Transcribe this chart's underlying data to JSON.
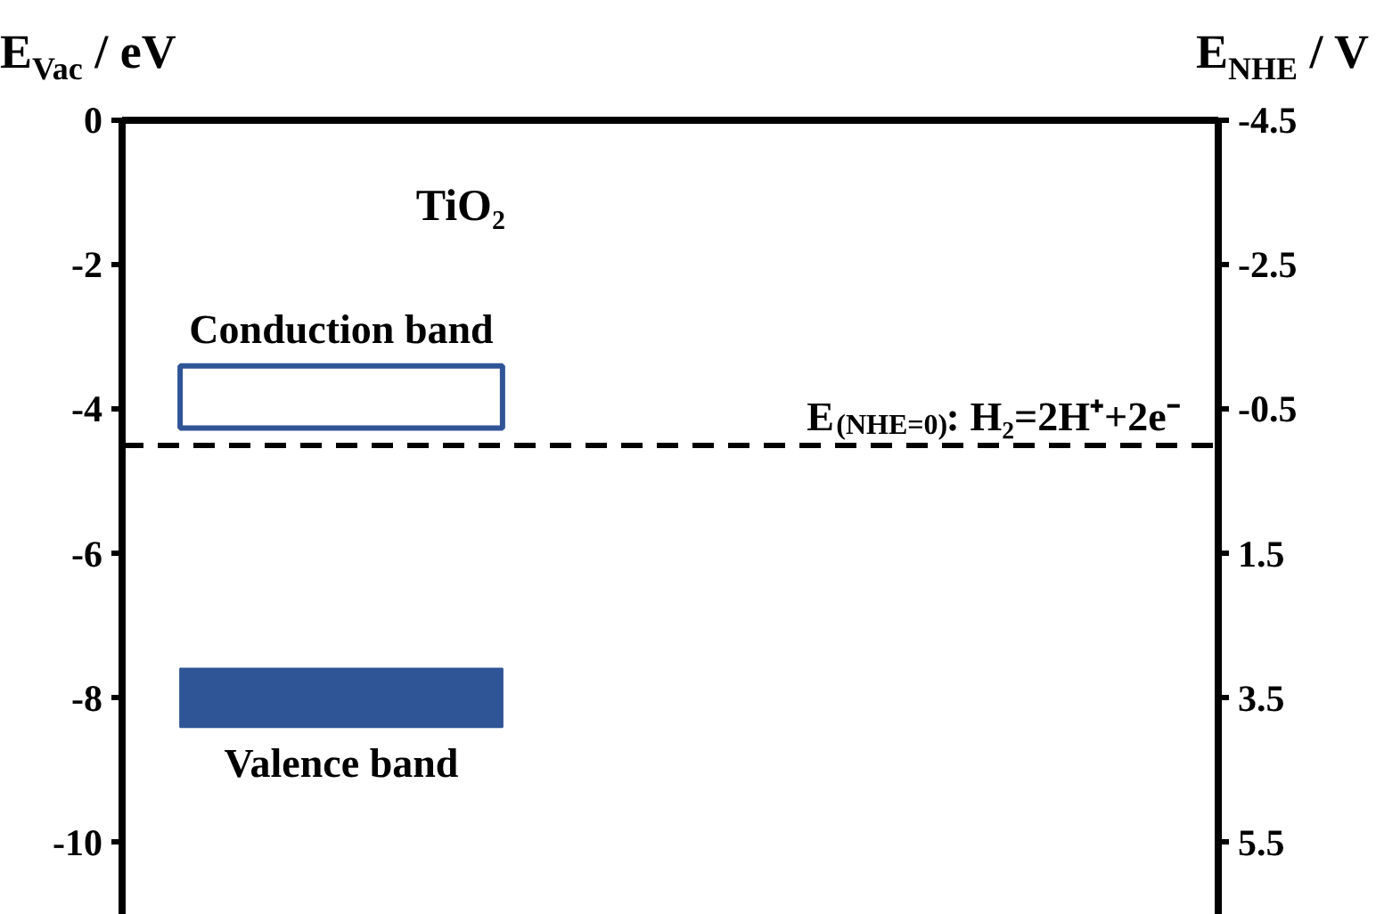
{
  "chart_data": {
    "type": "bar",
    "title": "TiO₂",
    "ylabel": "E$_{Vac}$ / eV",
    "y2label": "E$_{NHE}$ / V",
    "categories": [
      null
    ],
    "series": [
      {
        "name": "Conduction band",
        "color": "#ffffff",
        "values": [
          0.86
        ],
        "base": [
          -4.26
        ]
      },
      {
        "name": "Valence band",
        "color": "#2f5597",
        "values": [
          0.81
        ],
        "base": [
          -8.4
        ]
      }
    ],
    "ylim": [
      -11,
      0
    ],
    "yticks": [
      0,
      -2,
      -4,
      -6,
      -8,
      -10
    ],
    "y2lim": [
      6.5,
      -4.5
    ],
    "y2ticks": [
      -4.5,
      -2.5,
      -0.5,
      1.5,
      3.5,
      5.5
    ],
    "ref_lines": [
      {
        "axis": "y2",
        "value": 0,
        "label": "E$_{(NHE=0)}$:  H₂=2H⁺+2e⁻",
        "color": "#000000",
        "line_style": "dashed"
      }
    ],
    "grid": false
  }
}
